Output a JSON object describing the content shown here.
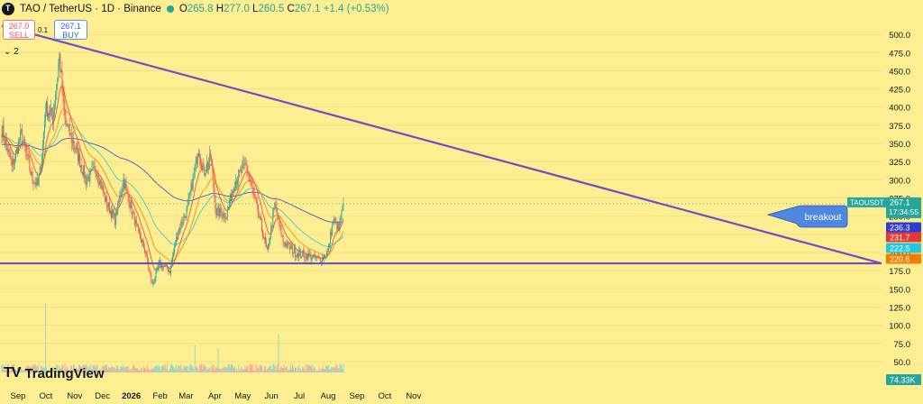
{
  "header": {
    "symbol": "TAO / TetherUS · 1D · Binance",
    "open_label": "O",
    "open": "265.8",
    "high_label": "H",
    "high": "277.0",
    "low_label": "L",
    "low": "260.5",
    "close_label": "C",
    "close": "267.1",
    "change": "+1.4 (+0.53%)"
  },
  "trade": {
    "sell_price": "267.0",
    "sell_label": "SELL",
    "spread": "0.1",
    "buy_price": "267.1",
    "buy_label": "BUY"
  },
  "layers_badge": "2",
  "branding": "TradingView",
  "colors": {
    "background": "#FCEE91",
    "up": "#26a69a",
    "down": "#ef5350",
    "trendline": "#6f4ec2",
    "ema_blue": "#2c3ed6",
    "ema_red": "#e53935",
    "ema_cyan": "#26c6da",
    "ema_orange": "#f57c00"
  },
  "chart_data": {
    "type": "candlestick",
    "symbol": "TAOUSDT",
    "y_axis": {
      "ticks": [
        500,
        475,
        450,
        425,
        400,
        375,
        350,
        325,
        300,
        275,
        250,
        225,
        200,
        175,
        150,
        125,
        100,
        75,
        50
      ],
      "tick_labels": [
        "500.0",
        "475.0",
        "450.0",
        "425.0",
        "400.0",
        "375.0",
        "350.0",
        "325.0",
        "300.0",
        "275.0",
        "250.0",
        "225.0",
        "200.0",
        "175.0",
        "150.0",
        "125.0",
        "100.0",
        "75.0",
        "50.0"
      ],
      "range": [
        35,
        520
      ]
    },
    "x_axis": {
      "labels": [
        "Sep",
        "Oct",
        "Nov",
        "Dec",
        "2026",
        "Feb",
        "Mar",
        "Apr",
        "May",
        "Jun",
        "Jul",
        "Aug",
        "Sep",
        "Oct",
        "Nov"
      ]
    },
    "price_path": [
      {
        "date": "Sep 1",
        "price": 370
      },
      {
        "date": "Sep 12",
        "price": 318
      },
      {
        "date": "Sep 22",
        "price": 363
      },
      {
        "date": "Oct 3",
        "price": 305
      },
      {
        "date": "Oct 10",
        "price": 292
      },
      {
        "date": "Oct 14",
        "price": 330
      },
      {
        "date": "Oct 18",
        "price": 400
      },
      {
        "date": "Oct 26",
        "price": 385
      },
      {
        "date": "Nov 2",
        "price": 470
      },
      {
        "date": "Nov 8",
        "price": 380
      },
      {
        "date": "Nov 20",
        "price": 340
      },
      {
        "date": "Dec 1",
        "price": 300
      },
      {
        "date": "Dec 12",
        "price": 315
      },
      {
        "date": "Dec 22",
        "price": 270
      },
      {
        "date": "Jan 1",
        "price": 245
      },
      {
        "date": "Jan 10",
        "price": 300
      },
      {
        "date": "Jan 24",
        "price": 235
      },
      {
        "date": "Feb 3",
        "price": 200
      },
      {
        "date": "Feb 10",
        "price": 155
      },
      {
        "date": "Feb 18",
        "price": 185
      },
      {
        "date": "Mar 1",
        "price": 175
      },
      {
        "date": "Mar 10",
        "price": 230
      },
      {
        "date": "Mar 20",
        "price": 260
      },
      {
        "date": "Apr 1",
        "price": 345
      },
      {
        "date": "Apr 6",
        "price": 310
      },
      {
        "date": "Apr 14",
        "price": 330
      },
      {
        "date": "Apr 20",
        "price": 255
      },
      {
        "date": "May 1",
        "price": 252
      },
      {
        "date": "May 10",
        "price": 298
      },
      {
        "date": "May 22",
        "price": 320
      },
      {
        "date": "Jun 1",
        "price": 270
      },
      {
        "date": "Jun 14",
        "price": 200
      },
      {
        "date": "Jun 22",
        "price": 265
      },
      {
        "date": "Jul 1",
        "price": 215
      },
      {
        "date": "Jul 14",
        "price": 200
      },
      {
        "date": "Jul 28",
        "price": 195
      },
      {
        "date": "Aug 10",
        "price": 190
      },
      {
        "date": "Aug 18",
        "price": 200
      },
      {
        "date": "Aug 24",
        "price": 245
      },
      {
        "date": "Aug 30",
        "price": 232
      },
      {
        "date": "Sep 4",
        "price": 267
      }
    ],
    "volume_spikes": [
      {
        "date": "Oct 18",
        "volume": 285
      },
      {
        "date": "Mar 28",
        "volume": 112
      },
      {
        "date": "Apr 22",
        "volume": 98
      },
      {
        "date": "Jun 26",
        "volume": 160
      }
    ],
    "trendline_descending": [
      {
        "date": "Sep 1",
        "price": 512
      },
      {
        "date": "Nov 20",
        "price": 185
      }
    ],
    "support_line": 185,
    "current_price_label": "TAOUSDT",
    "current_price": "267.1",
    "countdown": "17:34:55",
    "ema_labels": [
      {
        "value": "236.3",
        "color": "#2c3ed6"
      },
      {
        "value": "231.7",
        "color": "#e53935"
      },
      {
        "value": "222.5",
        "color": "#26c6da"
      },
      {
        "value": "220.6",
        "color": "#f57c00"
      }
    ],
    "volume_label": "74.33K",
    "annotation": "breakout"
  }
}
